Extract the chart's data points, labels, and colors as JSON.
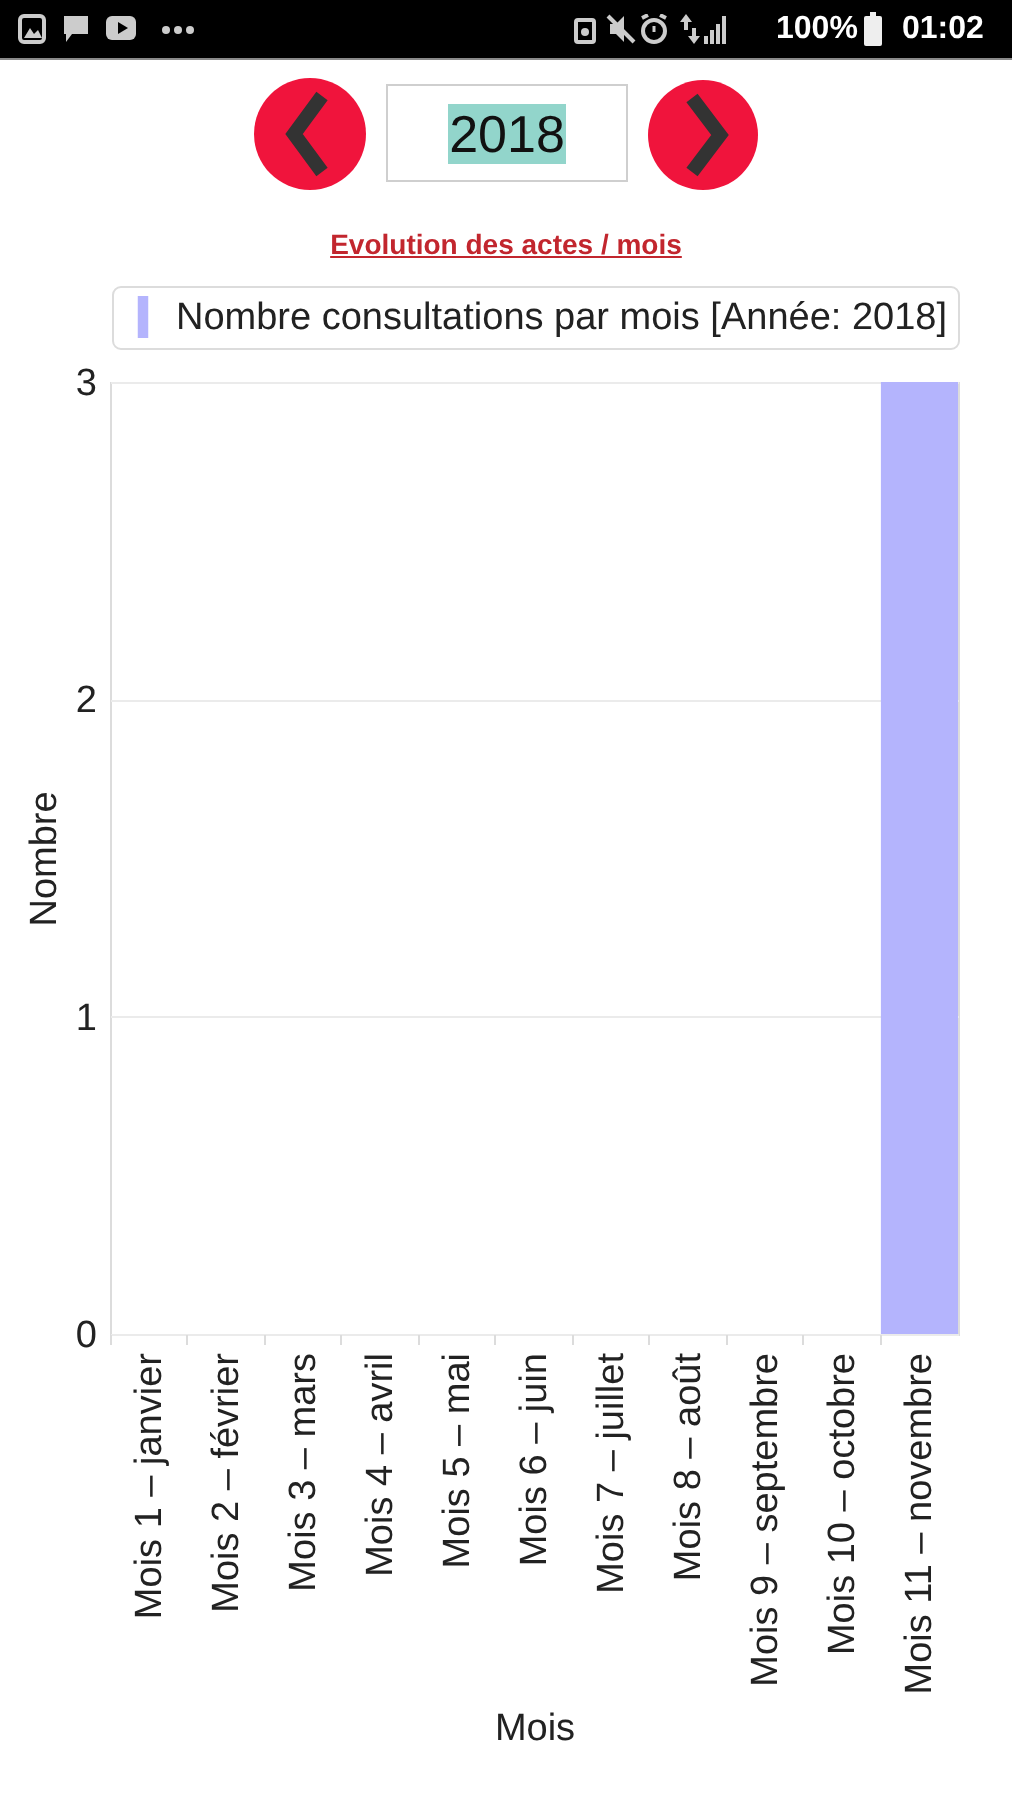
{
  "chart_data": {
    "type": "bar",
    "title": "Evolution des actes / mois",
    "xlabel": "Mois",
    "ylabel": "Nombre",
    "categories": [
      "Mois 1 – janvier",
      "Mois 2 – février",
      "Mois 3 – mars",
      "Mois 4 – avril",
      "Mois 5 – mai",
      "Mois 6 – juin",
      "Mois 7 – juillet",
      "Mois 8 – août",
      "Mois 9 – septembre",
      "Mois 10 – octobre",
      "Mois 11 – novembre"
    ],
    "series": [
      {
        "name": "Nombre consultations par mois [Année: 2018]",
        "color": "#b4b4fd",
        "values": [
          0,
          0,
          0,
          0,
          0,
          0,
          0,
          0,
          0,
          0,
          3
        ]
      }
    ],
    "ylim": [
      0,
      3
    ],
    "yticks": [
      0,
      1,
      2,
      3
    ],
    "grid": "y",
    "legend": "top",
    "annotations": [
      "2018",
      "100%",
      "01:02"
    ]
  }
}
